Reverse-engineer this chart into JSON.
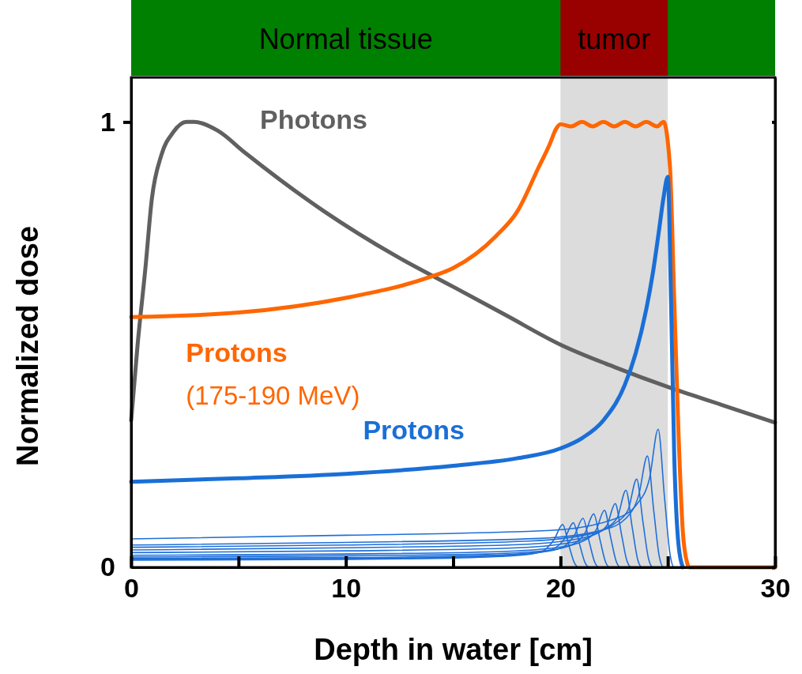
{
  "chart_data": {
    "type": "line",
    "xlabel": "Depth in water [cm]",
    "ylabel": "Normalized dose",
    "xlim": [
      0,
      30
    ],
    "ylim": [
      0,
      1.1
    ],
    "xticks": [
      0,
      {
        "value": 5,
        "label": null
      },
      10,
      {
        "value": 15,
        "label": null
      },
      20,
      {
        "value": 25,
        "label": null
      },
      30
    ],
    "yticks": [
      0,
      1
    ],
    "bands": [
      {
        "axis": "x",
        "from": 20,
        "to": 25,
        "label": "tumor",
        "color": "#dcdcdc"
      }
    ],
    "annotations": [
      "Normal tissue"
    ],
    "series": [
      {
        "name": "Photons",
        "color": "#606060",
        "x": [
          0,
          0.3,
          0.67,
          0.96,
          1.41,
          1.96,
          2.58,
          2.94,
          4.05,
          5.28,
          8.97,
          12.3,
          15,
          17.5,
          20,
          22.5,
          25,
          27.5,
          30
        ],
        "values": [
          0.33,
          0.5,
          0.675,
          0.826,
          0.926,
          0.977,
          1.0,
          1.0,
          0.98,
          0.932,
          0.8,
          0.7,
          0.63,
          0.565,
          0.5,
          0.45,
          0.405,
          0.365,
          0.325
        ]
      },
      {
        "name": "Protons (175-190 MeV)",
        "color": "#ff6600",
        "x": [
          0,
          5,
          10,
          13.8,
          15,
          17,
          18,
          19,
          19.5,
          19.8,
          20,
          20.5,
          21,
          21.5,
          22,
          22.5,
          23,
          23.5,
          24,
          24.5,
          24.8,
          25.1,
          25.3,
          25.5,
          25.7,
          25.9,
          26,
          30
        ],
        "values": [
          0.562,
          0.572,
          0.605,
          0.65,
          0.672,
          0.744,
          0.8,
          0.9,
          0.95,
          0.985,
          0.995,
          0.99,
          1.0,
          0.99,
          1.0,
          0.99,
          1.0,
          0.99,
          1.0,
          0.99,
          1.0,
          0.9,
          0.6,
          0.3,
          0.08,
          0.01,
          0,
          0
        ]
      },
      {
        "name": "Protons",
        "color": "#1a6fd6",
        "x": [
          0,
          5,
          10,
          15,
          18,
          20,
          21,
          22,
          23,
          23.5,
          24,
          24.3,
          24.6,
          24.8,
          25.0,
          25.15,
          25.3,
          25.5,
          25.7
        ],
        "values": [
          0.192,
          0.2,
          0.21,
          0.228,
          0.245,
          0.267,
          0.29,
          0.33,
          0.41,
          0.48,
          0.58,
          0.66,
          0.76,
          0.83,
          0.877,
          0.6,
          0.25,
          0.05,
          0
        ]
      },
      {
        "color": "#1f6fd8",
        "x": [
          0,
          10,
          15.1,
          18.1,
          19.1,
          19.7,
          20.1,
          20.4,
          20.65,
          20.85,
          30
        ],
        "values": [
          0.016,
          0.018,
          0.021,
          0.027,
          0.035,
          0.062,
          0.096,
          0.048,
          0.01,
          0,
          0
        ]
      },
      {
        "color": "#1f6fd8",
        "x": [
          0,
          10,
          15.6,
          18.6,
          19.6,
          20.2,
          20.6,
          20.9,
          21.15,
          21.35,
          30
        ],
        "values": [
          0.018,
          0.02,
          0.023,
          0.031,
          0.04,
          0.065,
          0.1,
          0.05,
          0.01,
          0,
          0
        ]
      },
      {
        "color": "#1f6fd8",
        "x": [
          0,
          10,
          16.05,
          19.05,
          20.05,
          20.65,
          21.05,
          21.35,
          21.6,
          21.8,
          30
        ],
        "values": [
          0.02,
          0.022,
          0.026,
          0.034,
          0.044,
          0.072,
          0.11,
          0.055,
          0.011,
          0,
          0
        ]
      },
      {
        "color": "#1f6fd8",
        "x": [
          0,
          10,
          16.55,
          19.55,
          20.55,
          21.15,
          21.55,
          21.85,
          22.1,
          22.3,
          30
        ],
        "values": [
          0.023,
          0.026,
          0.03,
          0.039,
          0.051,
          0.078,
          0.12,
          0.06,
          0.012,
          0,
          0
        ]
      },
      {
        "color": "#1f6fd8",
        "x": [
          0,
          10,
          17.05,
          20.05,
          21.05,
          21.65,
          22.05,
          22.35,
          22.6,
          22.8,
          30
        ],
        "values": [
          0.027,
          0.03,
          0.035,
          0.046,
          0.059,
          0.083,
          0.128,
          0.064,
          0.013,
          0,
          0
        ]
      },
      {
        "color": "#1f6fd8",
        "x": [
          0,
          10,
          17.55,
          20.55,
          21.55,
          22.15,
          22.55,
          22.85,
          23.1,
          23.3,
          30
        ],
        "values": [
          0.033,
          0.037,
          0.043,
          0.056,
          0.073,
          0.093,
          0.143,
          0.072,
          0.014,
          0,
          0
        ]
      },
      {
        "color": "#1f6fd8",
        "x": [
          0,
          10,
          18.05,
          21.05,
          22.05,
          22.65,
          23.05,
          23.35,
          23.6,
          23.8,
          30
        ],
        "values": [
          0.039,
          0.044,
          0.051,
          0.066,
          0.086,
          0.112,
          0.173,
          0.087,
          0.017,
          0,
          0
        ]
      },
      {
        "color": "#1f6fd8",
        "x": [
          0,
          10,
          18.55,
          21.55,
          22.55,
          23.15,
          23.55,
          23.85,
          24.1,
          24.3,
          30
        ],
        "values": [
          0.045,
          0.05,
          0.059,
          0.077,
          0.099,
          0.129,
          0.198,
          0.099,
          0.02,
          0,
          0
        ]
      },
      {
        "color": "#1f6fd8",
        "x": [
          0,
          10,
          19.05,
          22.05,
          23.05,
          23.65,
          24.05,
          24.35,
          24.6,
          24.8,
          30
        ],
        "values": [
          0.05,
          0.056,
          0.065,
          0.085,
          0.11,
          0.163,
          0.25,
          0.125,
          0.025,
          0,
          0
        ]
      },
      {
        "color": "#1f6fd8",
        "x": [
          0,
          10,
          19.55,
          22.55,
          23.55,
          24.15,
          24.55,
          24.85,
          25.1,
          25.3,
          30
        ],
        "values": [
          0.064,
          0.072,
          0.083,
          0.109,
          0.141,
          0.2,
          0.31,
          0.155,
          0.031,
          0,
          0
        ]
      }
    ]
  }
}
